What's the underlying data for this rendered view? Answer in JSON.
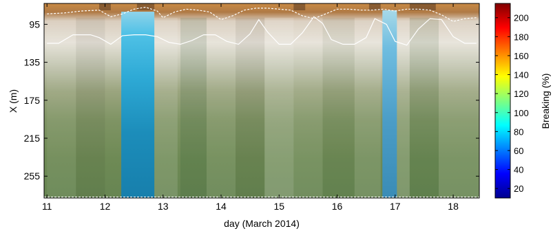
{
  "chart_data": {
    "type": "heatmap",
    "title": "",
    "xlabel": "day (March 2014)",
    "ylabel": "X (m)",
    "x_ticks": [
      "11",
      "12",
      "13",
      "14",
      "15",
      "16",
      "17",
      "18"
    ],
    "x_tick_values": [
      11,
      12,
      13,
      14,
      15,
      16,
      17,
      18
    ],
    "xlim": [
      10.95,
      18.45
    ],
    "y_ticks": [
      "95",
      "135",
      "175",
      "215",
      "255"
    ],
    "y_tick_values": [
      95,
      135,
      175,
      215,
      255
    ],
    "ylim": [
      73,
      278
    ],
    "y_reversed": true,
    "colorbar": {
      "label": "Breaking (%)",
      "ticks": [
        "20",
        "40",
        "60",
        "80",
        "100",
        "120",
        "140",
        "160",
        "180",
        "200"
      ],
      "tick_values": [
        20,
        40,
        60,
        80,
        100,
        120,
        140,
        160,
        180,
        200
      ],
      "range": [
        10,
        215
      ],
      "colormap": "jet"
    },
    "lines": [
      {
        "style": "dashed-white",
        "x": [
          11.0,
          11.3,
          11.6,
          11.9,
          12.1,
          12.3,
          12.5,
          12.7,
          12.9,
          13.0,
          13.2,
          13.4,
          13.6,
          13.8,
          14.0,
          14.2,
          14.4,
          14.6,
          14.8,
          15.0,
          15.2,
          15.4,
          15.6,
          15.8,
          16.0,
          16.2,
          16.4,
          16.6,
          16.8,
          17.0,
          17.2,
          17.4,
          17.6,
          17.8,
          18.0,
          18.2,
          18.4
        ],
        "y": [
          84,
          83,
          81,
          80,
          87,
          84,
          79,
          77,
          81,
          88,
          82,
          79,
          80,
          82,
          90,
          86,
          80,
          78,
          78,
          79,
          80,
          86,
          89,
          84,
          79,
          79,
          80,
          80,
          79,
          81,
          79,
          79,
          80,
          85,
          92,
          89,
          88
        ]
      },
      {
        "style": "solid-white",
        "x": [
          11.0,
          11.2,
          11.45,
          11.75,
          11.9,
          12.1,
          12.3,
          12.5,
          12.7,
          12.9,
          13.1,
          13.3,
          13.5,
          13.7,
          13.9,
          14.1,
          14.3,
          14.5,
          14.65,
          14.8,
          15.0,
          15.2,
          15.4,
          15.6,
          15.75,
          15.9,
          16.1,
          16.3,
          16.5,
          16.65,
          16.85,
          17.0,
          17.2,
          17.4,
          17.6,
          17.8,
          18.0,
          18.2,
          18.4
        ],
        "y": [
          115,
          115,
          106,
          106,
          109,
          116,
          107,
          106,
          106,
          108,
          114,
          116,
          112,
          106,
          106,
          113,
          116,
          105,
          90,
          103,
          116,
          116,
          104,
          87,
          94,
          111,
          116,
          116,
          109,
          89,
          95,
          113,
          117,
          100,
          89,
          90,
          108,
          115,
          115
        ]
      },
      {
        "style": "dashed-white",
        "x": [
          10.95,
          18.45
        ],
        "y": [
          277,
          277
        ]
      }
    ]
  }
}
